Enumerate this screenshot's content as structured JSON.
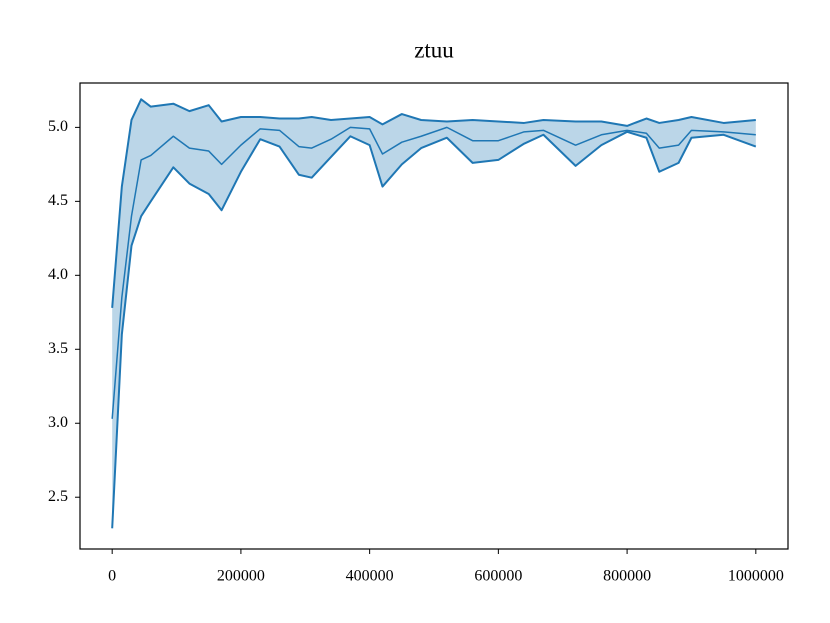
{
  "chart_data": {
    "type": "line",
    "title": "ztuu",
    "x": [
      0,
      15000,
      30000,
      45000,
      60000,
      95000,
      120000,
      150000,
      170000,
      200000,
      230000,
      260000,
      290000,
      310000,
      340000,
      370000,
      400000,
      420000,
      450000,
      480000,
      520000,
      560000,
      600000,
      640000,
      670000,
      720000,
      760000,
      800000,
      830000,
      850000,
      880000,
      900000,
      950000,
      1000000
    ],
    "series": [
      {
        "color": "#1f77b4",
        "values": [
          3.03,
          3.85,
          4.4,
          4.78,
          4.81,
          4.94,
          4.86,
          4.84,
          4.75,
          4.88,
          4.99,
          4.98,
          4.87,
          4.86,
          4.92,
          5.0,
          4.99,
          4.82,
          4.9,
          4.94,
          5.0,
          4.91,
          4.91,
          4.97,
          4.98,
          4.88,
          4.95,
          4.98,
          4.96,
          4.86,
          4.88,
          4.98,
          4.97,
          4.95
        ],
        "lower": [
          2.29,
          3.6,
          4.2,
          4.4,
          4.5,
          4.73,
          4.62,
          4.55,
          4.44,
          4.7,
          4.92,
          4.87,
          4.68,
          4.66,
          4.8,
          4.94,
          4.88,
          4.6,
          4.75,
          4.86,
          4.93,
          4.76,
          4.78,
          4.89,
          4.95,
          4.74,
          4.88,
          4.97,
          4.93,
          4.7,
          4.76,
          4.93,
          4.95,
          4.87
        ],
        "upper": [
          3.78,
          4.6,
          5.05,
          5.19,
          5.14,
          5.16,
          5.11,
          5.15,
          5.04,
          5.07,
          5.07,
          5.06,
          5.06,
          5.07,
          5.05,
          5.06,
          5.07,
          5.02,
          5.09,
          5.05,
          5.04,
          5.05,
          5.04,
          5.03,
          5.05,
          5.04,
          5.04,
          5.01,
          5.06,
          5.03,
          5.05,
          5.07,
          5.03,
          5.05
        ]
      }
    ],
    "xlim": [
      -50000,
      1050000
    ],
    "xticks": [
      0,
      200000,
      400000,
      600000,
      800000,
      1000000
    ],
    "ylim": [
      2.15,
      5.3
    ],
    "yticks": [
      2.5,
      {
        "value": 3,
        "label": "3.0"
      },
      3.5,
      {
        "value": 4,
        "label": "4.0"
      },
      4.5,
      {
        "value": 5,
        "label": "5.0"
      }
    ]
  }
}
